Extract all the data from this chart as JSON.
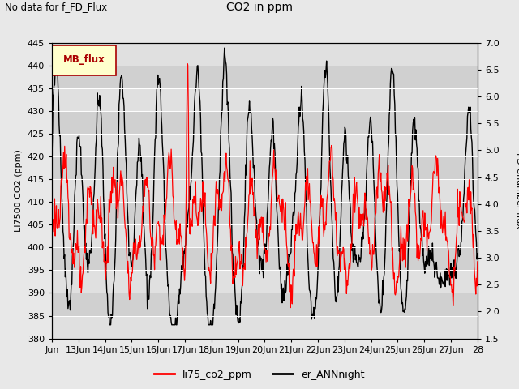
{
  "title": "CO2 in ppm",
  "top_label": "No data for f_FD_Flux",
  "ylabel_left": "LI7500 CO2 (ppm)",
  "ylabel_right": "FD Chamber flux",
  "ylim_left": [
    380,
    445
  ],
  "ylim_right": [
    1.5,
    7.0
  ],
  "yticks_left": [
    380,
    385,
    390,
    395,
    400,
    405,
    410,
    415,
    420,
    425,
    430,
    435,
    440,
    445
  ],
  "yticks_right": [
    1.5,
    2.0,
    2.5,
    3.0,
    3.5,
    4.0,
    4.5,
    5.0,
    5.5,
    6.0,
    6.5,
    7.0
  ],
  "bg_color": "#e8e8e8",
  "plot_bg_color": "#dcdcdc",
  "line1_color": "#ff0000",
  "line2_color": "#000000",
  "line1_label": "li75_co2_ppm",
  "line2_label": "er_ANNnight",
  "mb_flux_label": "MB_flux",
  "mb_box_facecolor": "#ffffcc",
  "mb_box_edgecolor": "#aa0000",
  "mb_text_color": "#aa0000",
  "xlim": [
    0,
    16
  ],
  "xtick_positions": [
    0,
    1,
    2,
    3,
    4,
    5,
    6,
    7,
    8,
    9,
    10,
    11,
    12,
    13,
    14,
    15,
    16
  ],
  "xtick_labels": [
    "Jun",
    "13Jun",
    "14Jun",
    "15Jun",
    "16Jun",
    "17Jun",
    "18Jun",
    "19Jun",
    "20Jun",
    "21Jun",
    "22Jun",
    "23Jun",
    "24Jun",
    "25Jun",
    "26Jun",
    "27Jun",
    "28"
  ],
  "grid_color": "#c8c8c8",
  "band_colors": [
    "#e0e0e0",
    "#d0d0d0"
  ],
  "figsize": [
    6.4,
    4.8
  ],
  "dpi": 100
}
